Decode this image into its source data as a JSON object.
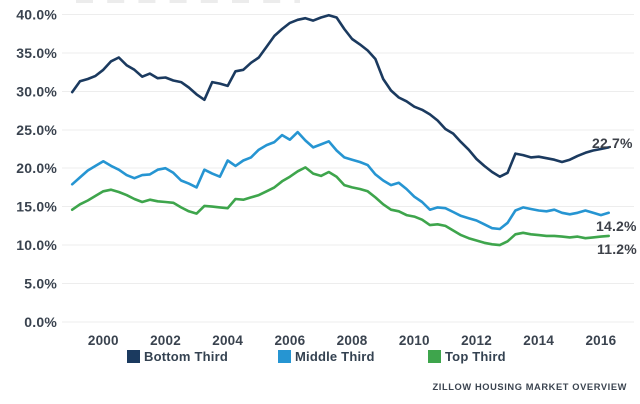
{
  "chart_data": {
    "type": "line",
    "title": "",
    "xlabel": "",
    "ylabel": "",
    "grid": "horizontal-only",
    "legend_position": "bottom",
    "ylim": [
      0,
      40
    ],
    "xlim": [
      1999,
      2016.25
    ],
    "y_tick_values": [
      0,
      5,
      10,
      15,
      20,
      25,
      30,
      35,
      40
    ],
    "y_tick_labels": [
      "0.0%",
      "5.0%",
      "10.0%",
      "15.0%",
      "20.0%",
      "25.0%",
      "30.0%",
      "35.0%",
      "40.0%"
    ],
    "x_tick_years": [
      2000,
      2002,
      2004,
      2006,
      2008,
      2010,
      2012,
      2014,
      2016
    ],
    "x_tick_labels": [
      "2000",
      "2002",
      "2004",
      "2006",
      "2008",
      "2010",
      "2012",
      "2014",
      "2016"
    ],
    "x": [
      1999.0,
      1999.25,
      1999.5,
      1999.75,
      2000.0,
      2000.25,
      2000.5,
      2000.75,
      2001.0,
      2001.25,
      2001.5,
      2001.75,
      2002.0,
      2002.25,
      2002.5,
      2002.75,
      2003.0,
      2003.25,
      2003.5,
      2003.75,
      2004.0,
      2004.25,
      2004.5,
      2004.75,
      2005.0,
      2005.25,
      2005.5,
      2005.75,
      2006.0,
      2006.25,
      2006.5,
      2006.75,
      2007.0,
      2007.25,
      2007.5,
      2007.75,
      2008.0,
      2008.25,
      2008.5,
      2008.75,
      2009.0,
      2009.25,
      2009.5,
      2009.75,
      2010.0,
      2010.25,
      2010.5,
      2010.75,
      2011.0,
      2011.25,
      2011.5,
      2011.75,
      2012.0,
      2012.25,
      2012.5,
      2012.75,
      2013.0,
      2013.25,
      2013.5,
      2013.75,
      2014.0,
      2014.25,
      2014.5,
      2014.75,
      2015.0,
      2015.25,
      2015.5,
      2015.75,
      2016.0,
      2016.25
    ],
    "series": [
      {
        "name": "Bottom Third",
        "color": "#1b3a5f",
        "end_label": "22.7%",
        "values": [
          29.9,
          31.3,
          31.6,
          32.0,
          32.8,
          33.9,
          34.4,
          33.4,
          32.8,
          31.9,
          32.3,
          31.7,
          31.8,
          31.4,
          31.2,
          30.5,
          29.6,
          28.9,
          31.2,
          31.0,
          30.7,
          32.6,
          32.8,
          33.7,
          34.4,
          35.8,
          37.2,
          38.1,
          38.9,
          39.3,
          39.5,
          39.2,
          39.6,
          39.9,
          39.6,
          38.1,
          36.8,
          36.1,
          35.3,
          34.2,
          31.6,
          30.1,
          29.2,
          28.7,
          28.0,
          27.6,
          27.0,
          26.2,
          25.1,
          24.5,
          23.4,
          22.4,
          21.2,
          20.3,
          19.5,
          18.9,
          19.4,
          21.9,
          21.7,
          21.4,
          21.5,
          21.3,
          21.1,
          20.8,
          21.1,
          21.6,
          22.0,
          22.3,
          22.5,
          22.7
        ]
      },
      {
        "name": "Middle Third",
        "color": "#2695d2",
        "end_label": "14.2%",
        "values": [
          17.9,
          18.8,
          19.7,
          20.3,
          20.9,
          20.3,
          19.8,
          19.1,
          18.7,
          19.1,
          19.2,
          19.8,
          20.0,
          19.4,
          18.4,
          18.0,
          17.5,
          19.8,
          19.3,
          18.9,
          21.0,
          20.3,
          21.0,
          21.4,
          22.4,
          23.0,
          23.4,
          24.3,
          23.7,
          24.7,
          23.6,
          22.7,
          23.1,
          23.5,
          22.3,
          21.4,
          21.1,
          20.8,
          20.4,
          19.2,
          18.4,
          17.8,
          18.1,
          17.3,
          16.3,
          15.6,
          14.6,
          14.9,
          14.8,
          14.3,
          13.8,
          13.5,
          13.2,
          12.7,
          12.2,
          12.1,
          12.9,
          14.5,
          14.9,
          14.7,
          14.5,
          14.4,
          14.6,
          14.2,
          14.0,
          14.2,
          14.5,
          14.2,
          13.9,
          14.2
        ]
      },
      {
        "name": "Top Third",
        "color": "#3ea54c",
        "end_label": "11.2%",
        "values": [
          14.6,
          15.3,
          15.8,
          16.4,
          17.0,
          17.2,
          16.9,
          16.5,
          16.0,
          15.6,
          15.9,
          15.7,
          15.6,
          15.5,
          14.9,
          14.4,
          14.1,
          15.1,
          15.0,
          14.9,
          14.8,
          16.0,
          15.9,
          16.2,
          16.5,
          17.0,
          17.5,
          18.3,
          18.9,
          19.6,
          20.1,
          19.3,
          19.0,
          19.5,
          18.9,
          17.8,
          17.5,
          17.3,
          17.0,
          16.2,
          15.3,
          14.6,
          14.4,
          13.9,
          13.7,
          13.3,
          12.6,
          12.7,
          12.5,
          11.9,
          11.3,
          10.9,
          10.6,
          10.3,
          10.1,
          10.0,
          10.5,
          11.4,
          11.6,
          11.4,
          11.3,
          11.2,
          11.2,
          11.1,
          11.0,
          11.1,
          10.9,
          11.0,
          11.1,
          11.2
        ]
      }
    ]
  },
  "legend": {
    "items": [
      {
        "label": "Bottom Third",
        "color": "#1b3a5f"
      },
      {
        "label": "Middle Third",
        "color": "#2695d2"
      },
      {
        "label": "Top Third",
        "color": "#3ea54c"
      }
    ]
  },
  "footer": {
    "source_text": "ZILLOW HOUSING MARKET OVERVIEW"
  },
  "colors": {
    "background": "#ffffff",
    "grid": "#ededed",
    "axis_text": "#3a434f",
    "end_label_text": "#3d4149"
  }
}
